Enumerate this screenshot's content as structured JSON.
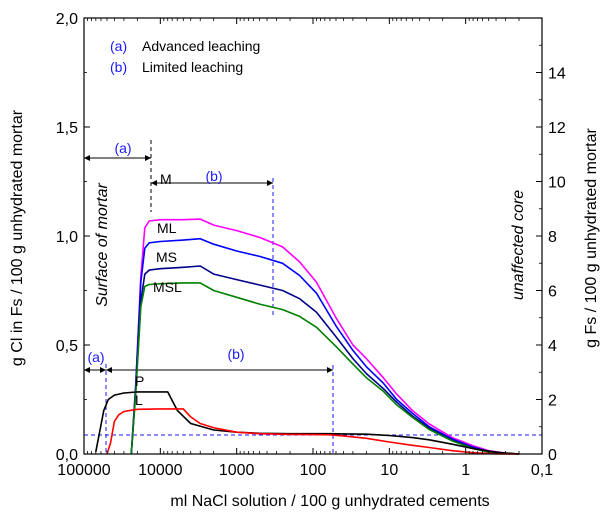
{
  "chart_data": {
    "type": "line",
    "xlabel": "ml NaCl solution / 100 g unhydrated cements",
    "ylabel": "g Cl in Fs / 100 g unhydrated mortar",
    "y2label": "g Fs / 100 g unhydrated mortar",
    "x_scale": "log-reversed",
    "xlim": [
      100000,
      0.1
    ],
    "ylim": [
      0,
      2.0
    ],
    "y2lim": [
      0,
      16
    ],
    "x_ticks": [
      100000,
      10000,
      1000,
      100,
      10,
      1,
      0.1
    ],
    "x_tick_labels": [
      "100000",
      "10000",
      "1000",
      "100",
      "10",
      "1",
      "0,1"
    ],
    "y_ticks": [
      0,
      0.5,
      1.0,
      1.5,
      2.0
    ],
    "y_tick_labels": [
      "0,0",
      "0,5",
      "1,0",
      "1,5",
      "2,0"
    ],
    "y2_ticks": [
      0,
      2,
      4,
      6,
      8,
      10,
      12,
      14
    ],
    "y2_tick_labels": [
      "0",
      "2",
      "4",
      "6",
      "8",
      "10",
      "12",
      "14"
    ],
    "legend": {
      "position": "top-left",
      "entries": [
        {
          "key": "(a)",
          "text": "Advanced leaching"
        },
        {
          "key": "(b)",
          "text": "Limited leaching"
        }
      ]
    },
    "annotations": {
      "surface": "Surface of mortar",
      "core": "unaffected core",
      "a": "(a)",
      "b": "(b)"
    },
    "series": [
      {
        "name": "M",
        "color": "#ff00ff",
        "axis": "right",
        "points": [
          [
            24000,
            0
          ],
          [
            21000,
            2.5
          ],
          [
            18000,
            6.5
          ],
          [
            16000,
            8.3
          ],
          [
            14000,
            8.55
          ],
          [
            10000,
            8.6
          ],
          [
            5000,
            8.6
          ],
          [
            3000,
            8.62
          ],
          [
            2000,
            8.4
          ],
          [
            1000,
            8.2
          ],
          [
            500,
            7.95
          ],
          [
            250,
            7.6
          ],
          [
            150,
            7.05
          ],
          [
            90,
            6.3
          ],
          [
            50,
            5.0
          ],
          [
            30,
            4.0
          ],
          [
            20,
            3.5
          ],
          [
            12,
            2.8
          ],
          [
            8,
            2.2
          ],
          [
            5,
            1.6
          ],
          [
            3,
            1.1
          ],
          [
            1.5,
            0.6
          ],
          [
            0.8,
            0.3
          ],
          [
            0.5,
            0.12
          ],
          [
            0.3,
            0.03
          ],
          [
            0.2,
            0
          ]
        ]
      },
      {
        "name": "ML",
        "color": "#0000ff",
        "axis": "right",
        "points": [
          [
            24000,
            0
          ],
          [
            21000,
            2.5
          ],
          [
            18000,
            6.3
          ],
          [
            16000,
            7.55
          ],
          [
            14000,
            7.75
          ],
          [
            10000,
            7.8
          ],
          [
            5000,
            7.85
          ],
          [
            3000,
            7.9
          ],
          [
            2000,
            7.7
          ],
          [
            1000,
            7.45
          ],
          [
            500,
            7.25
          ],
          [
            250,
            7.0
          ],
          [
            150,
            6.55
          ],
          [
            90,
            5.9
          ],
          [
            50,
            4.7
          ],
          [
            30,
            3.8
          ],
          [
            20,
            3.2
          ],
          [
            12,
            2.6
          ],
          [
            8,
            2.0
          ],
          [
            5,
            1.5
          ],
          [
            3,
            1.0
          ],
          [
            1.5,
            0.55
          ],
          [
            0.8,
            0.25
          ],
          [
            0.5,
            0.1
          ],
          [
            0.3,
            0.03
          ],
          [
            0.2,
            0
          ]
        ]
      },
      {
        "name": "MS",
        "color": "#00008b",
        "axis": "right",
        "points": [
          [
            24000,
            0
          ],
          [
            21000,
            2.3
          ],
          [
            18000,
            5.6
          ],
          [
            16000,
            6.6
          ],
          [
            14000,
            6.75
          ],
          [
            10000,
            6.8
          ],
          [
            5000,
            6.85
          ],
          [
            3000,
            6.9
          ],
          [
            2000,
            6.6
          ],
          [
            1000,
            6.4
          ],
          [
            500,
            6.2
          ],
          [
            250,
            6.0
          ],
          [
            150,
            5.7
          ],
          [
            90,
            5.2
          ],
          [
            50,
            4.3
          ],
          [
            30,
            3.5
          ],
          [
            20,
            2.95
          ],
          [
            12,
            2.4
          ],
          [
            8,
            1.9
          ],
          [
            5,
            1.4
          ],
          [
            3,
            0.95
          ],
          [
            1.5,
            0.5
          ],
          [
            0.8,
            0.22
          ],
          [
            0.5,
            0.08
          ],
          [
            0.3,
            0.02
          ],
          [
            0.2,
            0
          ]
        ]
      },
      {
        "name": "MSL",
        "color": "#008000",
        "axis": "right",
        "points": [
          [
            24000,
            0
          ],
          [
            21000,
            2.2
          ],
          [
            18000,
            5.4
          ],
          [
            16000,
            6.15
          ],
          [
            14000,
            6.22
          ],
          [
            10000,
            6.25
          ],
          [
            5000,
            6.28
          ],
          [
            3000,
            6.28
          ],
          [
            2000,
            6.0
          ],
          [
            1000,
            5.75
          ],
          [
            500,
            5.5
          ],
          [
            250,
            5.3
          ],
          [
            150,
            5.05
          ],
          [
            90,
            4.65
          ],
          [
            50,
            3.95
          ],
          [
            30,
            3.3
          ],
          [
            20,
            2.8
          ],
          [
            12,
            2.3
          ],
          [
            8,
            1.8
          ],
          [
            5,
            1.35
          ],
          [
            3,
            0.9
          ],
          [
            1.5,
            0.48
          ],
          [
            0.8,
            0.2
          ],
          [
            0.5,
            0.07
          ],
          [
            0.3,
            0.02
          ],
          [
            0.2,
            0
          ]
        ]
      },
      {
        "name": "P",
        "color": "#000000",
        "axis": "left",
        "points": [
          [
            70000,
            0.01
          ],
          [
            55000,
            0.2
          ],
          [
            48000,
            0.25
          ],
          [
            40000,
            0.27
          ],
          [
            30000,
            0.28
          ],
          [
            20000,
            0.285
          ],
          [
            10000,
            0.285
          ],
          [
            8000,
            0.285
          ],
          [
            6000,
            0.2
          ],
          [
            4000,
            0.14
          ],
          [
            2000,
            0.11
          ],
          [
            1000,
            0.1
          ],
          [
            500,
            0.095
          ],
          [
            200,
            0.093
          ],
          [
            100,
            0.093
          ],
          [
            60,
            0.093
          ],
          [
            40,
            0.092
          ],
          [
            20,
            0.091
          ],
          [
            10,
            0.085
          ],
          [
            5,
            0.075
          ],
          [
            3,
            0.065
          ],
          [
            1.5,
            0.045
          ],
          [
            0.8,
            0.025
          ],
          [
            0.4,
            0.008
          ],
          [
            0.2,
            0
          ]
        ]
      },
      {
        "name": "L",
        "color": "#ff0000",
        "axis": "left",
        "points": [
          [
            50000,
            0
          ],
          [
            45000,
            0.05
          ],
          [
            40000,
            0.15
          ],
          [
            35000,
            0.18
          ],
          [
            30000,
            0.195
          ],
          [
            20000,
            0.205
          ],
          [
            10000,
            0.207
          ],
          [
            5000,
            0.207
          ],
          [
            4000,
            0.17
          ],
          [
            3000,
            0.14
          ],
          [
            2000,
            0.12
          ],
          [
            1000,
            0.1
          ],
          [
            500,
            0.093
          ],
          [
            200,
            0.09
          ],
          [
            100,
            0.089
          ],
          [
            60,
            0.088
          ],
          [
            40,
            0.083
          ],
          [
            20,
            0.072
          ],
          [
            10,
            0.055
          ],
          [
            5,
            0.04
          ],
          [
            3,
            0.03
          ],
          [
            1.5,
            0.015
          ],
          [
            0.8,
            0.006
          ],
          [
            0.4,
            0.001
          ],
          [
            0.2,
            0
          ]
        ]
      }
    ]
  }
}
